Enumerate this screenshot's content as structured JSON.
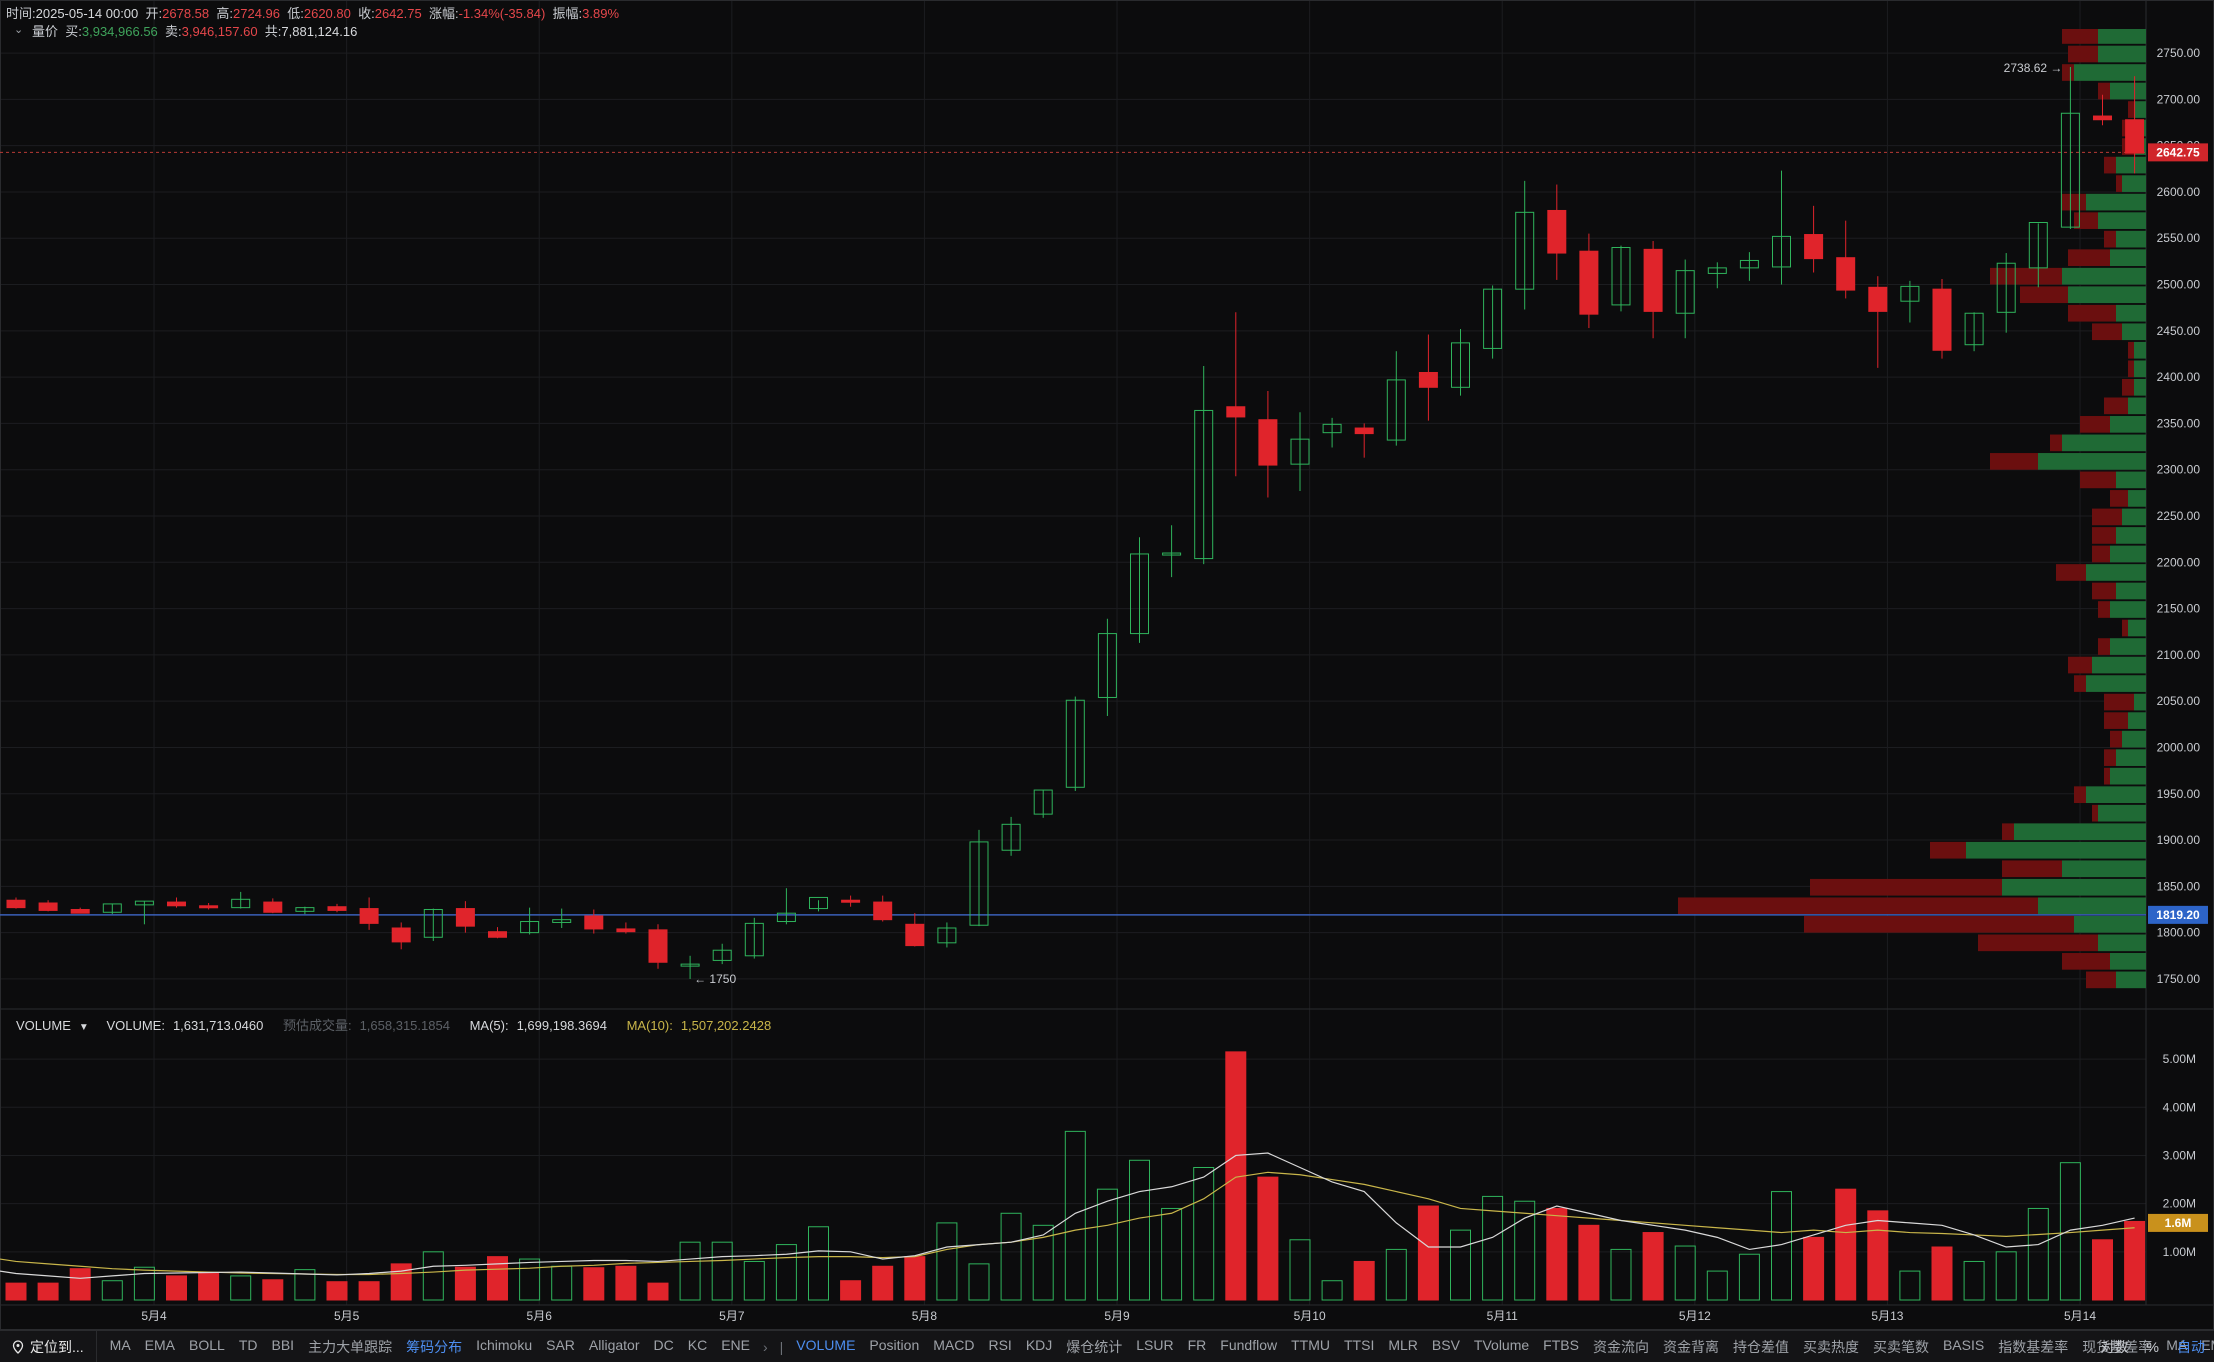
{
  "header": {
    "time_label": "时间:",
    "time": "2025-05-14 00:00",
    "open_label": "开:",
    "open": "2678.58",
    "high_label": "高:",
    "high": "2724.96",
    "low_label": "低:",
    "low": "2620.80",
    "close_label": "收:",
    "close": "2642.75",
    "change_label": "涨幅:",
    "change": "-1.34%(-35.84)",
    "amplitude_label": "振幅:",
    "amplitude": "3.89%"
  },
  "volume_price": {
    "label": "量价",
    "buy_label": "买:",
    "buy": "3,934,966.56",
    "sell_label": "卖:",
    "sell": "3,946,157.60",
    "total_label": "共:",
    "total": "7,881,124.16"
  },
  "volume_legend": {
    "name": "VOLUME",
    "volume_label": "VOLUME:",
    "volume": "1,631,713.0460",
    "estimate_label": "预估成交量:",
    "estimate": "1,658,315.1854",
    "ma5_label": "MA(5):",
    "ma5": "1,699,198.3694",
    "ma10_label": "MA(10):",
    "ma10": "1,507,202.2428"
  },
  "price_axis": {
    "ticks": [
      "2750.00",
      "2700.00",
      "2650.00",
      "2600.00",
      "2550.00",
      "2500.00",
      "2450.00",
      "2400.00",
      "2350.00",
      "2300.00",
      "2250.00",
      "2200.00",
      "2150.00",
      "2100.00",
      "2050.00",
      "2000.00",
      "1950.00",
      "1900.00",
      "1850.00",
      "1800.00",
      "1750.00"
    ],
    "current_price": "2642.75",
    "poc_price": "1819.20",
    "high_marker": "2738.62 →",
    "low_marker": "← 1750"
  },
  "volume_axis": {
    "ticks": [
      "5.00M",
      "4.00M",
      "3.00M",
      "2.00M",
      "1.00M"
    ],
    "current": "1.6M"
  },
  "time_axis": [
    "5月4",
    "5月5",
    "5月6",
    "5月7",
    "5月8",
    "5月9",
    "5月10",
    "5月11",
    "5月12",
    "5月13",
    "5月14"
  ],
  "colors": {
    "up": "#2fb45c",
    "down": "#e0242b",
    "profile_green": "#1f6a35",
    "profile_red": "#6b0f0f",
    "ma5": "#d9d9d9",
    "ma10": "#c9b64a",
    "poc_line": "#3a5fb8",
    "current_line": "#b83a35"
  },
  "chart_data": {
    "type": "candlestick",
    "interval": "4h",
    "price_ylim": [
      1724,
      2776
    ],
    "volume_ylim": [
      0,
      5.5
    ],
    "volume_unit": "M",
    "candles": [
      [
        1835,
        1838,
        1827,
        1826
      ],
      [
        1832,
        1835,
        1824,
        1823
      ],
      [
        1825,
        1827,
        1821,
        1822
      ],
      [
        1822,
        1831,
        1831,
        1820
      ],
      [
        1830,
        1834,
        1834,
        1809
      ],
      [
        1833,
        1838,
        1829,
        1827
      ],
      [
        1829,
        1832,
        1827,
        1825
      ],
      [
        1827,
        1844,
        1836,
        1826
      ],
      [
        1833,
        1837,
        1822,
        1821
      ],
      [
        1823,
        1828,
        1827,
        1820
      ],
      [
        1828,
        1831,
        1824,
        1822
      ],
      [
        1826,
        1838,
        1810,
        1803
      ],
      [
        1805,
        1811,
        1790,
        1782
      ],
      [
        1795,
        1826,
        1825,
        1791
      ],
      [
        1826,
        1834,
        1807,
        1800
      ],
      [
        1801,
        1806,
        1795,
        1794
      ],
      [
        1800,
        1827,
        1812,
        1798
      ],
      [
        1811,
        1826,
        1814,
        1805
      ],
      [
        1818,
        1825,
        1804,
        1799
      ],
      [
        1804,
        1811,
        1801,
        1799
      ],
      [
        1803,
        1809,
        1768,
        1761
      ],
      [
        1764,
        1775,
        1766,
        1750
      ],
      [
        1770,
        1788,
        1781,
        1766
      ],
      [
        1775,
        1816,
        1810,
        1772
      ],
      [
        1812,
        1848,
        1821,
        1809
      ],
      [
        1826,
        1835,
        1838,
        1823
      ],
      [
        1835,
        1840,
        1834,
        1828
      ],
      [
        1833,
        1840,
        1814,
        1812
      ],
      [
        1809,
        1821,
        1786,
        1785
      ],
      [
        1789,
        1811,
        1805,
        1784
      ],
      [
        1808,
        1911,
        1898,
        1807
      ],
      [
        1889,
        1925,
        1917,
        1883
      ],
      [
        1928,
        1954,
        1954,
        1924
      ],
      [
        1957,
        2055,
        2051,
        1953
      ],
      [
        2054,
        2139,
        2123,
        2034
      ],
      [
        2123,
        2227,
        2209,
        2113
      ],
      [
        2208,
        2240,
        2210,
        2184
      ],
      [
        2204,
        2412,
        2364,
        2198
      ],
      [
        2368,
        2470,
        2357,
        2293
      ],
      [
        2354,
        2385,
        2305,
        2270
      ],
      [
        2306,
        2362,
        2333,
        2277
      ],
      [
        2340,
        2356,
        2349,
        2324
      ],
      [
        2345,
        2350,
        2339,
        2313
      ],
      [
        2332,
        2428,
        2397,
        2326
      ],
      [
        2405,
        2446,
        2389,
        2353
      ],
      [
        2389,
        2452,
        2437,
        2380
      ],
      [
        2431,
        2499,
        2495,
        2420
      ],
      [
        2495,
        2612,
        2578,
        2473
      ],
      [
        2580,
        2608,
        2534,
        2505
      ],
      [
        2536,
        2555,
        2468,
        2453
      ],
      [
        2478,
        2542,
        2540,
        2471
      ],
      [
        2538,
        2547,
        2471,
        2442
      ],
      [
        2469,
        2527,
        2515,
        2442
      ],
      [
        2512,
        2524,
        2518,
        2496
      ],
      [
        2518,
        2535,
        2526,
        2504
      ],
      [
        2519,
        2623,
        2552,
        2500
      ],
      [
        2554,
        2585,
        2528,
        2513
      ],
      [
        2529,
        2569,
        2494,
        2485
      ],
      [
        2497,
        2509,
        2471,
        2410
      ],
      [
        2482,
        2504,
        2498,
        2459
      ],
      [
        2495,
        2506,
        2429,
        2420
      ],
      [
        2435,
        2470,
        2469,
        2428
      ],
      [
        2470,
        2534,
        2523,
        2448
      ],
      [
        2518,
        2566,
        2567,
        2497
      ],
      [
        2562,
        2735,
        2685,
        2560
      ],
      [
        2682,
        2705,
        2678,
        2672
      ],
      [
        2678,
        2725,
        2642,
        2620
      ]
    ],
    "volumes": [
      0.35,
      0.35,
      0.65,
      0.4,
      0.68,
      0.5,
      0.55,
      0.5,
      0.42,
      0.63,
      0.38,
      0.38,
      0.75,
      1.0,
      0.68,
      0.9,
      0.85,
      0.7,
      0.67,
      0.7,
      0.35,
      1.2,
      1.2,
      0.8,
      1.15,
      1.52,
      0.4,
      0.7,
      0.9,
      1.6,
      0.75,
      1.8,
      1.55,
      3.5,
      2.3,
      2.9,
      1.9,
      2.75,
      5.15,
      2.55,
      1.25,
      0.4,
      0.8,
      1.05,
      1.95,
      1.45,
      2.15,
      2.05,
      1.9,
      1.55,
      1.05,
      1.4,
      1.12,
      0.6,
      0.95,
      2.25,
      1.3,
      2.3,
      1.85,
      0.6,
      1.1,
      0.8,
      1.0,
      1.9,
      2.85,
      1.25,
      1.63
    ],
    "ma5": [
      0.55,
      0.5,
      0.45,
      0.5,
      0.55,
      0.56,
      0.57,
      0.58,
      0.56,
      0.54,
      0.52,
      0.55,
      0.6,
      0.7,
      0.72,
      0.75,
      0.78,
      0.8,
      0.82,
      0.82,
      0.8,
      0.85,
      0.9,
      0.92,
      0.95,
      1.02,
      1.0,
      0.85,
      0.92,
      1.1,
      1.15,
      1.2,
      1.35,
      1.8,
      2.05,
      2.25,
      2.35,
      2.55,
      3.0,
      3.05,
      2.75,
      2.45,
      2.25,
      1.6,
      1.1,
      1.1,
      1.3,
      1.7,
      1.95,
      1.8,
      1.65,
      1.55,
      1.45,
      1.3,
      1.05,
      1.15,
      1.35,
      1.55,
      1.65,
      1.6,
      1.55,
      1.35,
      1.1,
      1.15,
      1.45,
      1.55,
      1.7
    ],
    "ma10": [
      0.8,
      0.75,
      0.7,
      0.65,
      0.62,
      0.6,
      0.58,
      0.56,
      0.55,
      0.54,
      0.53,
      0.53,
      0.55,
      0.58,
      0.62,
      0.64,
      0.66,
      0.7,
      0.72,
      0.76,
      0.78,
      0.8,
      0.82,
      0.85,
      0.88,
      0.9,
      0.9,
      0.88,
      0.9,
      1.05,
      1.15,
      1.2,
      1.3,
      1.45,
      1.55,
      1.7,
      1.8,
      2.1,
      2.55,
      2.65,
      2.6,
      2.5,
      2.4,
      2.25,
      2.1,
      1.9,
      1.85,
      1.8,
      1.75,
      1.7,
      1.65,
      1.6,
      1.55,
      1.5,
      1.45,
      1.4,
      1.45,
      1.4,
      1.45,
      1.4,
      1.38,
      1.35,
      1.32,
      1.36,
      1.4,
      1.45,
      1.5
    ],
    "profile": {
      "bin_step": 20,
      "buy": [
        0.05,
        0.06,
        0.08,
        0.12,
        0.18,
        0.24,
        0.14,
        0.3,
        0.22,
        0.08,
        0.1,
        0.06,
        0.05,
        0.04,
        0.03,
        0.02,
        0.1,
        0.09,
        0.06,
        0.03,
        0.06,
        0.05,
        0.1,
        0.06,
        0.05,
        0.04,
        0.03,
        0.05,
        0.18,
        0.14,
        0.06,
        0.03,
        0.02,
        0.02,
        0.02,
        0.04,
        0.05,
        0.13,
        0.14,
        0.06,
        0.05,
        0.08,
        0.1,
        0.04,
        0.05,
        0.02,
        0.02,
        0.02,
        0.06,
        0.12,
        0.08,
        0.08,
        0.12,
        0.16,
        0.15,
        0.18,
        0.12,
        0.15,
        0.06,
        0.08,
        0.18,
        0.08,
        0.12,
        0.24,
        0.28,
        0.33,
        0.25,
        0.07,
        0.04,
        0.07,
        0.08,
        0.05,
        0.08,
        0.2,
        0.3,
        0.24,
        0.14,
        0.05,
        0.1,
        0.06,
        0.05,
        0.04,
        0.04,
        0.05,
        0.05,
        0.04,
        0.03,
        0.02,
        0.02,
        0.02,
        0.03,
        0.02,
        0.02,
        0.01,
        0.01
      ],
      "sell": [
        0.05,
        0.08,
        0.2,
        0.45,
        0.6,
        0.32,
        0.1,
        0.06,
        0.02,
        0.01,
        0.02,
        0.01,
        0.02,
        0.02,
        0.04,
        0.05,
        0.02,
        0.04,
        0.02,
        0.01,
        0.02,
        0.04,
        0.05,
        0.03,
        0.04,
        0.05,
        0.03,
        0.06,
        0.08,
        0.02,
        0.05,
        0.04,
        0.02,
        0.01,
        0.01,
        0.05,
        0.08,
        0.08,
        0.12,
        0.07,
        0.02,
        0.04,
        0.04,
        0.01,
        0.02,
        0.02,
        0.02,
        0.01,
        0.02,
        0.02,
        0.05,
        0.06,
        0.19,
        0.06,
        0.05,
        0.12,
        0.14,
        0.12,
        0.02,
        0.04,
        0.06,
        0.1,
        0.06,
        0.11,
        0.14,
        0.28,
        0.12,
        0.04,
        0.05,
        0.04,
        0.02,
        0.04,
        0.05,
        0.08,
        0.15,
        0.04,
        0.04,
        0.02,
        0.04,
        0.02,
        0.01,
        0.01,
        0.01,
        0.02,
        0.01,
        0.03,
        0.04,
        0.02,
        0.02,
        0.02,
        0.01,
        0.01,
        0.01,
        0.01,
        0.01
      ]
    }
  },
  "bottom_bar": {
    "locate": "定位到...",
    "indicators_main": [
      "MA",
      "EMA",
      "BOLL",
      "TD",
      "BBI",
      "主力大单跟踪",
      "筹码分布",
      "Ichimoku",
      "SAR",
      "Alligator",
      "DC",
      "KC",
      "ENE"
    ],
    "active_main": "筹码分布",
    "more": "›",
    "indicators_sub": [
      "VOLUME",
      "Position",
      "MACD",
      "RSI",
      "KDJ",
      "爆仓统计",
      "LSUR",
      "FR",
      "Fundflow",
      "TTMU",
      "TTSI",
      "MLR",
      "BSV",
      "TVolume",
      "FTBS",
      "资金流向",
      "资金背离",
      "持仓差值",
      "买卖热度",
      "买卖笔数",
      "BASIS",
      "指数基差率",
      "现货基差率",
      "MA",
      "EMA"
    ],
    "active_sub": "VOLUME",
    "right": [
      "对数",
      "%",
      "自动"
    ]
  }
}
